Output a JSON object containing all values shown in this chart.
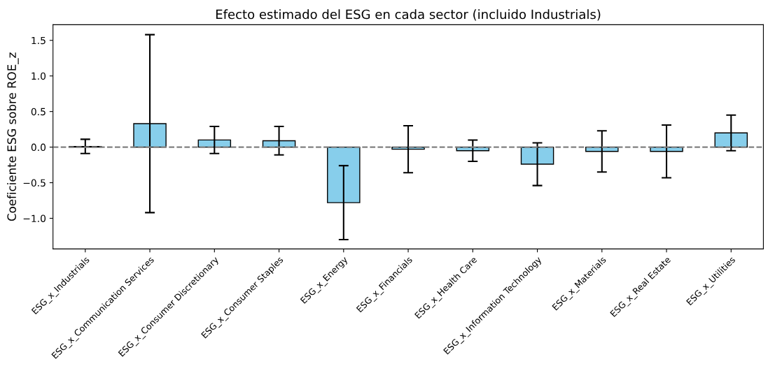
{
  "chart_data": {
    "type": "bar",
    "title": "Efecto estimado del ESG en cada sector (incluido Industrials)",
    "ylabel": "Coeficiente ESG sobre ROE_z",
    "categories": [
      "ESG_x_Industrials",
      "ESG_x_Communication Services",
      "ESG_x_Consumer Discretionary",
      "ESG_x_Consumer Staples",
      "ESG_x_Energy",
      "ESG_x_Financials",
      "ESG_x_Health Care",
      "ESG_x_Information Technology",
      "ESG_x_Materials",
      "ESG_x_Real Estate",
      "ESG_x_Utilities"
    ],
    "values": [
      0.01,
      0.33,
      0.1,
      0.09,
      -0.78,
      -0.03,
      -0.05,
      -0.24,
      -0.06,
      -0.06,
      0.2
    ],
    "errors": [
      0.1,
      1.25,
      0.19,
      0.2,
      0.52,
      0.33,
      0.15,
      0.3,
      0.29,
      0.37,
      0.25
    ],
    "color": "#87ceeb",
    "ylim": [
      -1.43,
      1.72
    ],
    "yticks": [
      {
        "value": -1.0,
        "label": "−1.0"
      },
      {
        "value": -0.5,
        "label": "−0.5"
      },
      {
        "value": 0.0,
        "label": "0.0"
      },
      {
        "value": 0.5,
        "label": "0.5"
      },
      {
        "value": 1.0,
        "label": "1.0"
      },
      {
        "value": 1.5,
        "label": "1.5"
      }
    ],
    "ref_lines": [
      {
        "axis": "y",
        "value": 0,
        "color": "#808080",
        "line_style": "dashed"
      }
    ],
    "grid": false
  }
}
